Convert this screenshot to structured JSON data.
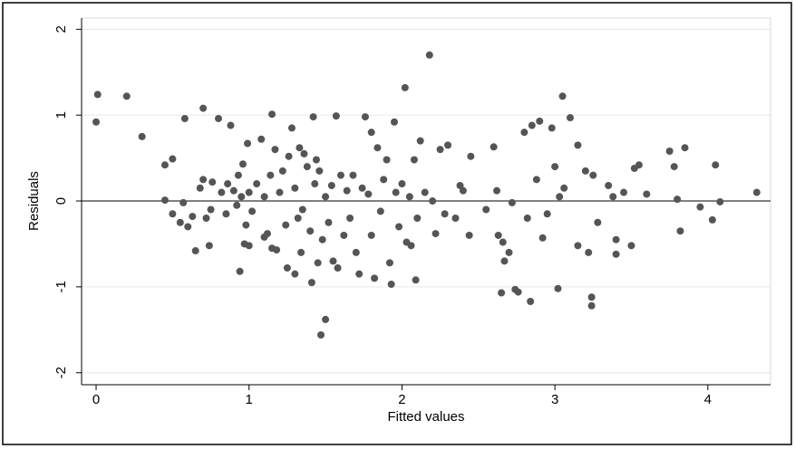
{
  "chart_data": {
    "type": "scatter",
    "xlabel": "Fitted values",
    "ylabel": "Residuals",
    "xlim": [
      -0.095,
      4.41
    ],
    "ylim": [
      -2.14,
      2.13
    ],
    "xticks": [
      0,
      1,
      2,
      3,
      4
    ],
    "yticks": [
      -2,
      -1,
      0,
      1,
      2
    ],
    "grid": true,
    "hline": 0,
    "color": "#555555",
    "x": [
      0,
      0.01,
      0.2,
      0.3,
      0.45,
      0.45,
      0.5,
      0.5,
      0.55,
      0.57,
      0.58,
      0.6,
      0.63,
      0.65,
      0.68,
      0.7,
      0.7,
      0.72,
      0.74,
      0.75,
      0.76,
      0.8,
      0.82,
      0.85,
      0.86,
      0.88,
      0.9,
      0.92,
      0.93,
      0.94,
      0.95,
      0.96,
      0.97,
      0.98,
      0.99,
      1.0,
      1.0,
      1.02,
      1.05,
      1.08,
      1.1,
      1.1,
      1.12,
      1.14,
      1.15,
      1.15,
      1.17,
      1.18,
      1.2,
      1.22,
      1.24,
      1.25,
      1.26,
      1.28,
      1.3,
      1.3,
      1.32,
      1.33,
      1.34,
      1.35,
      1.36,
      1.38,
      1.4,
      1.41,
      1.42,
      1.43,
      1.44,
      1.45,
      1.46,
      1.47,
      1.48,
      1.5,
      1.5,
      1.52,
      1.54,
      1.55,
      1.57,
      1.58,
      1.6,
      1.62,
      1.64,
      1.66,
      1.68,
      1.7,
      1.72,
      1.74,
      1.76,
      1.78,
      1.8,
      1.8,
      1.82,
      1.84,
      1.86,
      1.88,
      1.9,
      1.92,
      1.93,
      1.95,
      1.96,
      1.98,
      2.0,
      2.02,
      2.03,
      2.05,
      2.06,
      2.08,
      2.09,
      2.1,
      2.12,
      2.15,
      2.18,
      2.2,
      2.22,
      2.25,
      2.28,
      2.3,
      2.35,
      2.38,
      2.4,
      2.44,
      2.45,
      2.55,
      2.6,
      2.62,
      2.63,
      2.65,
      2.66,
      2.67,
      2.7,
      2.72,
      2.74,
      2.76,
      2.8,
      2.82,
      2.84,
      2.85,
      2.88,
      2.9,
      2.92,
      2.95,
      2.98,
      3.0,
      3.02,
      3.03,
      3.05,
      3.06,
      3.1,
      3.15,
      3.15,
      3.2,
      3.22,
      3.24,
      3.24,
      3.25,
      3.28,
      3.35,
      3.38,
      3.4,
      3.4,
      3.45,
      3.5,
      3.52,
      3.55,
      3.6,
      3.75,
      3.78,
      3.8,
      3.82,
      3.85,
      3.95,
      4.03,
      4.05,
      4.08,
      4.32
    ],
    "values": [
      0.92,
      1.24,
      1.22,
      0.75,
      0.01,
      0.42,
      0.49,
      -0.15,
      -0.25,
      -0.02,
      0.96,
      -0.3,
      -0.18,
      -0.58,
      0.15,
      0.25,
      1.08,
      -0.2,
      -0.52,
      -0.1,
      0.22,
      0.96,
      0.1,
      -0.15,
      0.2,
      0.88,
      0.12,
      -0.05,
      0.3,
      -0.82,
      0.05,
      0.43,
      -0.5,
      -0.28,
      0.67,
      -0.52,
      0.1,
      -0.12,
      0.2,
      0.72,
      0.05,
      -0.42,
      -0.38,
      0.3,
      1.01,
      -0.55,
      0.6,
      -0.57,
      0.1,
      0.35,
      -0.28,
      -0.78,
      0.52,
      0.85,
      -0.85,
      0.15,
      -0.2,
      0.62,
      -0.6,
      -0.1,
      0.55,
      0.4,
      -0.35,
      -0.95,
      0.98,
      0.2,
      0.48,
      -0.72,
      0.35,
      -1.56,
      -0.45,
      -1.38,
      0.05,
      -0.25,
      0.18,
      -0.7,
      0.99,
      -0.78,
      0.3,
      -0.4,
      0.12,
      -0.2,
      0.3,
      -0.6,
      -0.85,
      0.15,
      0.98,
      0.08,
      -0.4,
      0.8,
      -0.9,
      0.62,
      -0.12,
      0.25,
      0.48,
      -0.72,
      -0.97,
      0.92,
      0.1,
      -0.3,
      0.2,
      1.32,
      -0.48,
      0.05,
      -0.52,
      0.48,
      -0.92,
      -0.2,
      0.7,
      0.1,
      1.7,
      0.0,
      -0.38,
      0.6,
      -0.15,
      0.65,
      -0.2,
      0.18,
      0.12,
      -0.4,
      0.52,
      -0.1,
      0.63,
      0.12,
      -0.4,
      -1.07,
      -0.48,
      -0.7,
      -0.6,
      -0.02,
      -1.03,
      -1.06,
      0.8,
      -0.2,
      -1.17,
      0.88,
      0.25,
      0.93,
      -0.43,
      -0.15,
      0.85,
      0.4,
      -1.02,
      0.05,
      1.22,
      0.15,
      0.97,
      0.65,
      -0.52,
      0.35,
      -0.6,
      -1.12,
      -1.22,
      0.3,
      -0.25,
      0.18,
      0.05,
      -0.45,
      -0.62,
      0.1,
      -0.52,
      0.38,
      0.42,
      0.08,
      0.58,
      0.4,
      0.02,
      -0.35,
      0.62,
      -0.07,
      -0.22,
      0.42,
      -0.01,
      0.1
    ]
  }
}
